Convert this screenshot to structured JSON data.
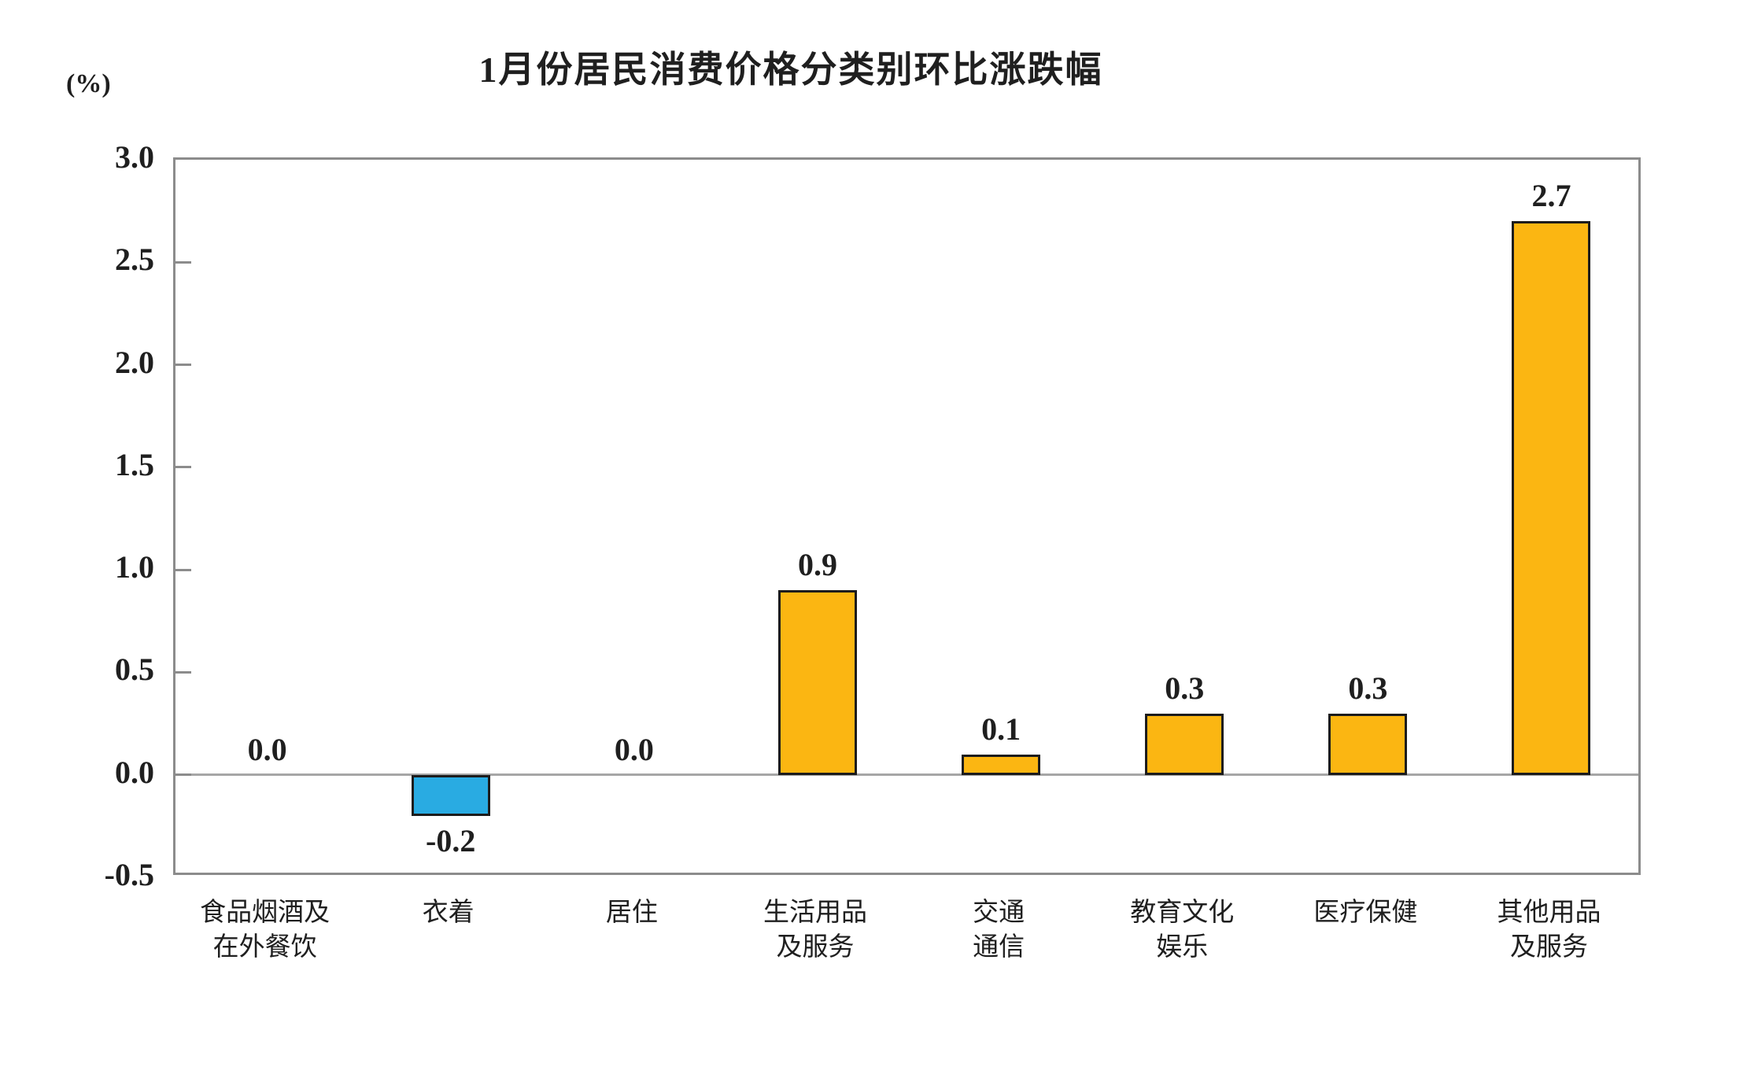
{
  "title": "1月份居民消费价格分类别环比涨跌幅",
  "axis_unit_label": "(%)",
  "chart_data": {
    "type": "bar",
    "title": "1月份居民消费价格分类别环比涨跌幅",
    "ylabel": "(%)",
    "xlabel": "",
    "ylim": [
      -0.5,
      3.0
    ],
    "ytick_step": 0.5,
    "ytick_labels": [
      "3.0",
      "2.5",
      "2.0",
      "1.5",
      "1.0",
      "0.5",
      "0.0",
      "-0.5"
    ],
    "grid": false,
    "legend_position": "none",
    "categories": [
      [
        "食品烟酒及",
        "在外餐饮"
      ],
      [
        "衣着"
      ],
      [
        "居住"
      ],
      [
        "生活用品",
        "及服务"
      ],
      [
        "交通",
        "通信"
      ],
      [
        "教育文化",
        "娱乐"
      ],
      [
        "医疗保健"
      ],
      [
        "其他用品",
        "及服务"
      ]
    ],
    "values": [
      0.0,
      -0.2,
      0.0,
      0.9,
      0.1,
      0.3,
      0.3,
      2.7
    ],
    "data_labels": [
      "0.0",
      "-0.2",
      "0.0",
      "0.9",
      "0.1",
      "0.3",
      "0.3",
      "2.7"
    ],
    "colors": {
      "bar_positive": "#FBB612",
      "bar_negative": "#29ABE2",
      "bar_border": "#1C1C1C",
      "axis_border": "#8C8C8C",
      "zero_line": "#A6A6A6",
      "text": "#1F1F1F"
    }
  }
}
